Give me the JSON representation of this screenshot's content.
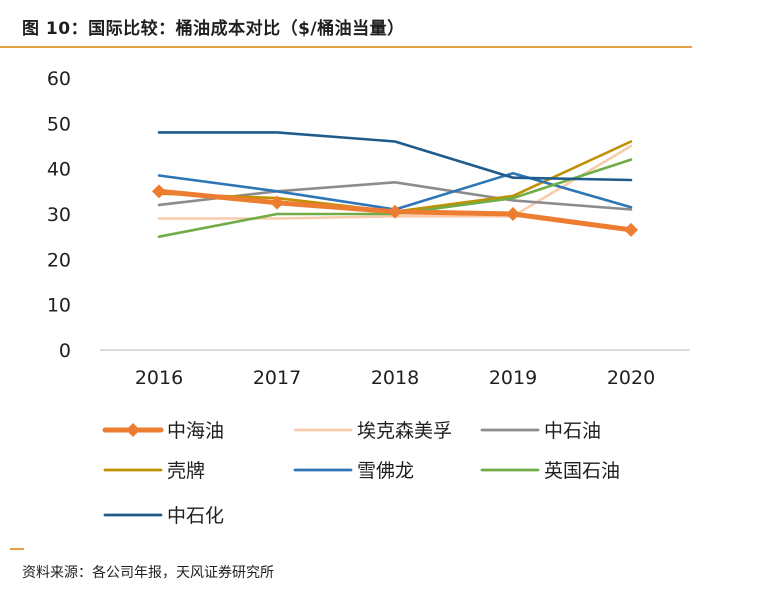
{
  "header": {
    "title": "图 10：国际比较：桶油成本对比（$/桶油当量）"
  },
  "footer": {
    "source": "资料来源：各公司年报，天风证券研究所"
  },
  "colors": {
    "rule": "#e3a041",
    "axis": "#c8c8c8",
    "text": "#1f1f1f"
  },
  "chart_data": {
    "type": "line",
    "title": "",
    "xlabel": "",
    "ylabel": "",
    "categories": [
      "2016",
      "2017",
      "2018",
      "2019",
      "2020"
    ],
    "y_ticks": [
      "0",
      "10",
      "20",
      "30",
      "40",
      "50",
      "60"
    ],
    "ylim": [
      0,
      60
    ],
    "grid": false,
    "legend_position": "bottom",
    "series": [
      {
        "name": "中海油",
        "color": "#ed7d31",
        "marker": "diamond",
        "thick": true,
        "values": [
          35,
          32.5,
          30.5,
          30,
          26.5
        ]
      },
      {
        "name": "埃克森美孚",
        "color": "#f8cbad",
        "marker": "none",
        "thick": false,
        "values": [
          29,
          29,
          29.5,
          29.5,
          45
        ]
      },
      {
        "name": "中石油",
        "color": "#8c8c8c",
        "marker": "none",
        "thick": false,
        "values": [
          32,
          35,
          37,
          33,
          31
        ]
      },
      {
        "name": "壳牌",
        "color": "#bf9000",
        "marker": "none",
        "thick": false,
        "values": [
          34.5,
          33.5,
          30.5,
          34,
          46
        ]
      },
      {
        "name": "雪佛龙",
        "color": "#2e75b6",
        "marker": "none",
        "thick": false,
        "values": [
          38.5,
          35,
          31,
          39,
          31.5
        ]
      },
      {
        "name": "英国石油",
        "color": "#70ad47",
        "marker": "none",
        "thick": false,
        "values": [
          25,
          30,
          30,
          33.5,
          42
        ]
      },
      {
        "name": "中石化",
        "color": "#1f5c8b",
        "marker": "none",
        "thick": false,
        "values": [
          48,
          48,
          46,
          38,
          37.5
        ]
      }
    ]
  }
}
